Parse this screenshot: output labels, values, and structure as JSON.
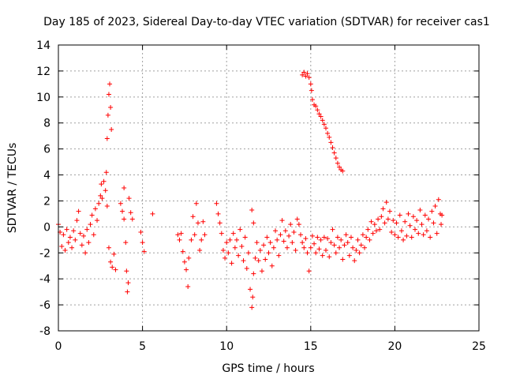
{
  "chart_data": {
    "type": "scatter",
    "title": "Day 185 of 2023, Sidereal Day-to-day VTEC variation (SDTVAR) for receiver cas1",
    "xlabel": "GPS time / hours",
    "ylabel": "SDTVAR / TECUs",
    "xlim": [
      0,
      25
    ],
    "ylim": [
      -8,
      14
    ],
    "xticks": [
      0,
      5,
      10,
      15,
      20,
      25
    ],
    "xtick_labels": [
      "0",
      "5",
      "10",
      "15",
      "20",
      "25"
    ],
    "yticks": [
      -8,
      -6,
      -4,
      -2,
      0,
      2,
      4,
      6,
      8,
      10,
      12,
      14
    ],
    "ytick_labels": [
      "-8",
      "-6",
      "-4",
      "-2",
      "0",
      "2",
      "4",
      "6",
      "8",
      "10",
      "12",
      "14"
    ],
    "grid": true,
    "marker": "+",
    "color": "#ff0000",
    "series": [
      {
        "name": "SDTVAR",
        "points": [
          [
            0.0,
            0.2
          ],
          [
            0.1,
            -0.4
          ],
          [
            0.2,
            -1.5
          ],
          [
            0.3,
            -0.6
          ],
          [
            0.4,
            -1.8
          ],
          [
            0.5,
            -0.2
          ],
          [
            0.6,
            -1.2
          ],
          [
            0.7,
            -0.8
          ],
          [
            0.8,
            -1.6
          ],
          [
            0.9,
            -0.3
          ],
          [
            1.0,
            -1.0
          ],
          [
            1.1,
            0.5
          ],
          [
            1.2,
            1.2
          ],
          [
            1.3,
            -0.5
          ],
          [
            1.4,
            -1.4
          ],
          [
            1.5,
            -0.7
          ],
          [
            1.6,
            -2.0
          ],
          [
            1.7,
            -0.2
          ],
          [
            1.8,
            -1.2
          ],
          [
            1.9,
            0.2
          ],
          [
            2.0,
            0.9
          ],
          [
            2.1,
            -0.6
          ],
          [
            2.2,
            1.4
          ],
          [
            2.3,
            0.5
          ],
          [
            2.4,
            1.8
          ],
          [
            2.5,
            2.4
          ],
          [
            2.55,
            3.3
          ],
          [
            2.6,
            2.2
          ],
          [
            2.7,
            3.5
          ],
          [
            2.8,
            2.8
          ],
          [
            2.85,
            4.2
          ],
          [
            2.9,
            6.8
          ],
          [
            2.95,
            8.6
          ],
          [
            3.0,
            10.2
          ],
          [
            3.05,
            11.0
          ],
          [
            3.1,
            9.2
          ],
          [
            3.15,
            7.5
          ],
          [
            2.9,
            1.6
          ],
          [
            3.0,
            -1.6
          ],
          [
            3.1,
            -2.7
          ],
          [
            3.2,
            -3.1
          ],
          [
            3.3,
            -2.1
          ],
          [
            3.4,
            -3.3
          ],
          [
            3.7,
            1.8
          ],
          [
            3.8,
            1.2
          ],
          [
            3.9,
            0.6
          ],
          [
            4.0,
            -1.2
          ],
          [
            4.05,
            -3.4
          ],
          [
            4.1,
            -5.0
          ],
          [
            4.15,
            -4.3
          ],
          [
            3.9,
            3.0
          ],
          [
            4.2,
            2.2
          ],
          [
            4.3,
            1.1
          ],
          [
            4.4,
            0.6
          ],
          [
            4.9,
            -0.4
          ],
          [
            5.0,
            -1.2
          ],
          [
            5.1,
            -1.9
          ],
          [
            5.6,
            1.0
          ],
          [
            7.1,
            -0.6
          ],
          [
            7.2,
            -1.0
          ],
          [
            7.3,
            -0.5
          ],
          [
            7.4,
            -1.9
          ],
          [
            7.5,
            -2.7
          ],
          [
            7.6,
            -3.3
          ],
          [
            7.7,
            -4.6
          ],
          [
            7.75,
            -2.4
          ],
          [
            7.9,
            -1.0
          ],
          [
            8.0,
            0.8
          ],
          [
            8.1,
            -0.6
          ],
          [
            8.2,
            1.8
          ],
          [
            8.3,
            0.3
          ],
          [
            8.4,
            -1.8
          ],
          [
            8.5,
            -1.0
          ],
          [
            8.6,
            0.4
          ],
          [
            8.7,
            -0.6
          ],
          [
            9.4,
            1.8
          ],
          [
            9.5,
            1.0
          ],
          [
            9.6,
            0.3
          ],
          [
            9.7,
            -0.5
          ],
          [
            9.8,
            -1.8
          ],
          [
            9.9,
            -2.4
          ],
          [
            10.0,
            -1.2
          ],
          [
            10.1,
            -2.0
          ],
          [
            10.2,
            -1.0
          ],
          [
            10.3,
            -2.8
          ],
          [
            10.4,
            -0.5
          ],
          [
            10.5,
            -1.6
          ],
          [
            10.6,
            -1.0
          ],
          [
            10.7,
            -2.2
          ],
          [
            10.8,
            -0.2
          ],
          [
            10.9,
            -1.5
          ],
          [
            11.0,
            -2.6
          ],
          [
            11.1,
            -0.8
          ],
          [
            11.2,
            -3.2
          ],
          [
            11.3,
            -2.0
          ],
          [
            11.4,
            -4.8
          ],
          [
            11.5,
            -6.2
          ],
          [
            11.55,
            -5.4
          ],
          [
            11.6,
            -3.6
          ],
          [
            11.7,
            -2.4
          ],
          [
            11.5,
            1.3
          ],
          [
            11.6,
            0.3
          ],
          [
            11.8,
            -1.2
          ],
          [
            11.9,
            -2.6
          ],
          [
            12.0,
            -1.8
          ],
          [
            12.1,
            -3.4
          ],
          [
            12.2,
            -1.4
          ],
          [
            12.3,
            -2.5
          ],
          [
            12.4,
            -0.8
          ],
          [
            12.5,
            -2.0
          ],
          [
            12.6,
            -1.2
          ],
          [
            12.7,
            -3.0
          ],
          [
            12.8,
            -1.6
          ],
          [
            12.9,
            -0.3
          ],
          [
            13.0,
            -1.0
          ],
          [
            13.1,
            -2.2
          ],
          [
            13.2,
            -0.6
          ],
          [
            13.3,
            0.5
          ],
          [
            13.4,
            -1.1
          ],
          [
            13.5,
            -0.3
          ],
          [
            13.6,
            -1.6
          ],
          [
            13.7,
            -0.7
          ],
          [
            13.8,
            0.2
          ],
          [
            13.9,
            -1.2
          ],
          [
            14.0,
            -0.4
          ],
          [
            14.1,
            -1.8
          ],
          [
            14.2,
            0.6
          ],
          [
            14.3,
            0.2
          ],
          [
            14.4,
            -0.6
          ],
          [
            14.5,
            -1.2
          ],
          [
            14.6,
            -1.6
          ],
          [
            14.7,
            -0.9
          ],
          [
            14.8,
            -2.0
          ],
          [
            14.9,
            -3.4
          ],
          [
            15.0,
            -1.6
          ],
          [
            15.1,
            -0.7
          ],
          [
            15.2,
            -1.3
          ],
          [
            15.3,
            -2.0
          ],
          [
            15.4,
            -0.8
          ],
          [
            15.5,
            -1.7
          ],
          [
            15.6,
            -1.0
          ],
          [
            15.7,
            -2.2
          ],
          [
            15.8,
            -0.8
          ],
          [
            15.9,
            -1.8
          ],
          [
            16.0,
            -0.9
          ],
          [
            16.1,
            -2.3
          ],
          [
            16.2,
            -1.2
          ],
          [
            16.3,
            -0.2
          ],
          [
            16.4,
            -1.4
          ],
          [
            16.5,
            -2.0
          ],
          [
            16.6,
            -0.8
          ],
          [
            16.7,
            -1.6
          ],
          [
            16.8,
            -1.0
          ],
          [
            16.9,
            -2.5
          ],
          [
            17.0,
            -1.4
          ],
          [
            17.1,
            -0.6
          ],
          [
            17.2,
            -1.2
          ],
          [
            17.3,
            -2.2
          ],
          [
            17.4,
            -0.8
          ],
          [
            17.5,
            -1.6
          ],
          [
            17.6,
            -2.6
          ],
          [
            17.7,
            -1.8
          ],
          [
            17.8,
            -1.0
          ],
          [
            17.9,
            -2.0
          ],
          [
            18.0,
            -1.4
          ],
          [
            18.1,
            -0.6
          ],
          [
            18.2,
            -1.6
          ],
          [
            18.3,
            -0.8
          ],
          [
            18.4,
            -0.2
          ],
          [
            18.5,
            -1.0
          ],
          [
            18.6,
            0.4
          ],
          [
            18.7,
            -0.5
          ],
          [
            18.8,
            0.2
          ],
          [
            18.9,
            -0.3
          ],
          [
            19.0,
            0.6
          ],
          [
            19.1,
            -0.2
          ],
          [
            19.2,
            0.8
          ],
          [
            19.3,
            1.4
          ],
          [
            19.4,
            0.3
          ],
          [
            19.5,
            1.9
          ],
          [
            19.6,
            0.6
          ],
          [
            19.7,
            1.2
          ],
          [
            19.8,
            -0.4
          ],
          [
            19.9,
            0.5
          ],
          [
            20.0,
            -0.6
          ],
          [
            20.1,
            0.3
          ],
          [
            20.2,
            -0.8
          ],
          [
            20.3,
            0.9
          ],
          [
            20.4,
            -0.3
          ],
          [
            20.5,
            -1.0
          ],
          [
            20.6,
            0.4
          ],
          [
            20.7,
            -0.7
          ],
          [
            20.8,
            1.0
          ],
          [
            20.9,
            0.1
          ],
          [
            21.0,
            -0.8
          ],
          [
            21.1,
            0.8
          ],
          [
            21.2,
            -0.2
          ],
          [
            21.3,
            0.5
          ],
          [
            21.4,
            -0.5
          ],
          [
            21.5,
            1.3
          ],
          [
            21.6,
            0.2
          ],
          [
            21.7,
            -0.6
          ],
          [
            21.8,
            0.9
          ],
          [
            21.9,
            -0.3
          ],
          [
            22.0,
            0.6
          ],
          [
            22.1,
            -0.8
          ],
          [
            22.2,
            1.2
          ],
          [
            22.3,
            0.3
          ],
          [
            22.4,
            1.6
          ],
          [
            22.5,
            -0.5
          ],
          [
            22.6,
            2.1
          ],
          [
            22.7,
            1.0
          ],
          [
            22.75,
            0.2
          ],
          [
            22.8,
            0.9
          ],
          [
            14.5,
            11.7
          ],
          [
            14.6,
            11.9
          ],
          [
            14.7,
            11.6
          ],
          [
            14.8,
            11.8
          ],
          [
            14.9,
            11.5
          ],
          [
            15.0,
            11.0
          ],
          [
            15.05,
            10.5
          ],
          [
            15.1,
            9.8
          ],
          [
            15.2,
            9.4
          ],
          [
            15.3,
            9.3
          ],
          [
            15.4,
            9.0
          ],
          [
            15.5,
            8.7
          ],
          [
            15.6,
            8.5
          ],
          [
            15.7,
            8.2
          ],
          [
            15.8,
            7.9
          ],
          [
            15.9,
            7.6
          ],
          [
            16.0,
            7.2
          ],
          [
            16.1,
            6.9
          ],
          [
            16.2,
            6.5
          ],
          [
            16.3,
            6.1
          ],
          [
            16.4,
            5.7
          ],
          [
            16.5,
            5.3
          ],
          [
            16.6,
            4.9
          ],
          [
            16.7,
            4.6
          ],
          [
            16.8,
            4.4
          ],
          [
            16.9,
            4.3
          ]
        ]
      }
    ]
  }
}
